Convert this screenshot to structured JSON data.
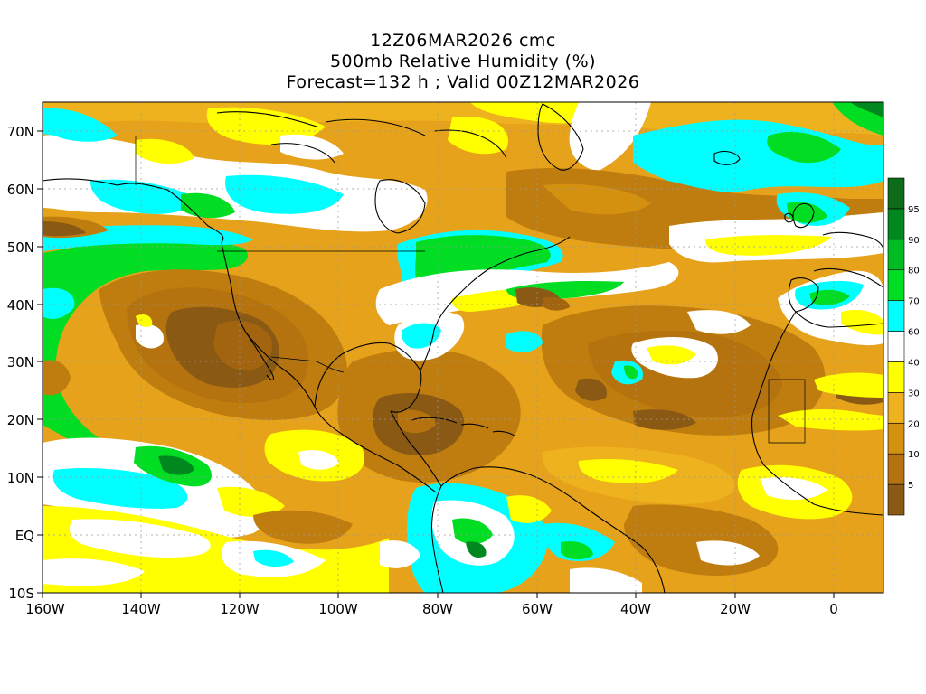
{
  "title": {
    "line1": "12Z06MAR2026 cmc",
    "line2": "500mb Relative Humidity (%)",
    "line3": "Forecast=132 h ; Valid 00Z12MAR2026"
  },
  "axes": {
    "lat_labels": [
      "70N",
      "60N",
      "50N",
      "40N",
      "30N",
      "20N",
      "10N",
      "EQ",
      "10S"
    ],
    "lon_labels": [
      "160W",
      "140W",
      "120W",
      "100W",
      "80W",
      "60W",
      "40W",
      "20W",
      "0"
    ]
  },
  "colorbar": {
    "levels": [
      "5",
      "10",
      "20",
      "30",
      "40",
      "60",
      "70",
      "80",
      "90",
      "95"
    ],
    "colors": [
      "#8a5a14",
      "#b5730f",
      "#d4900f",
      "#eeb21e",
      "#ffff00",
      "#ffffff",
      "#00ffff",
      "#00dd22",
      "#00bb22",
      "#00881f",
      "#0d6b1a"
    ]
  },
  "colors": {
    "very_dry": "#8a5a14",
    "dry": "#c07d0f",
    "moderately_dry": "#e6a21a",
    "yellow": "#ffff00",
    "white": "#ffffff",
    "cyan": "#00ffff",
    "green": "#00dd22",
    "dark_green": "#00881f"
  }
}
